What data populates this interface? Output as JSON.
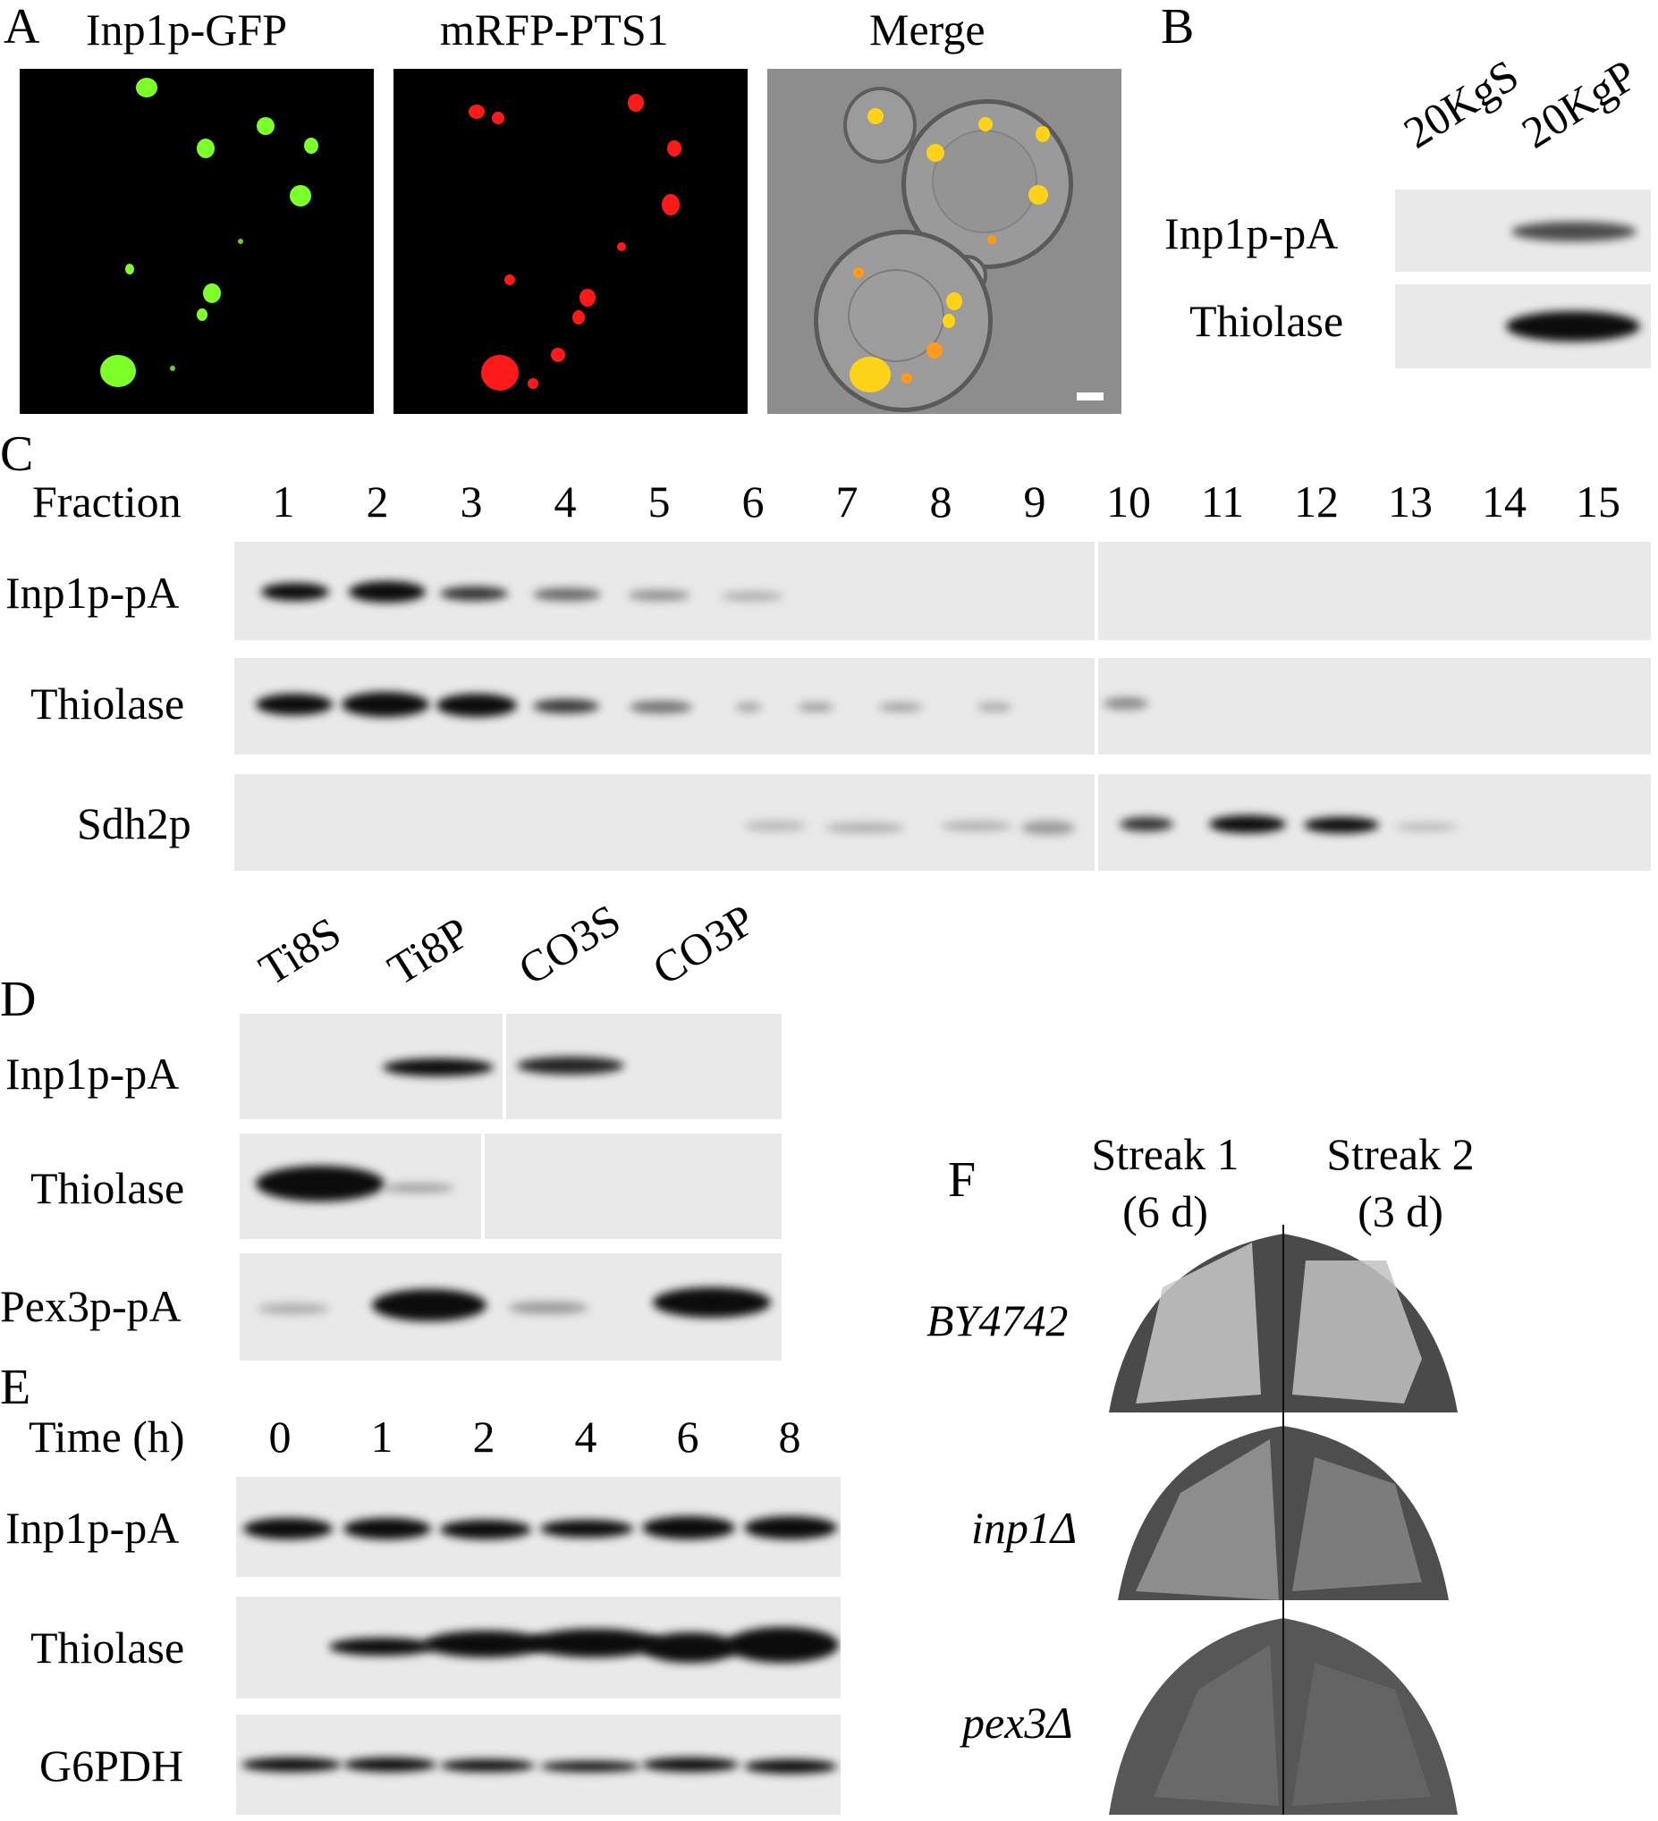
{
  "panels": {
    "A": {
      "letter": "A",
      "titles": [
        "Inp1p-GFP",
        "mRFP-PTS1",
        "Merge"
      ]
    },
    "B": {
      "letter": "B",
      "lanes": [
        "20KgS",
        "20KgP"
      ],
      "rows": [
        "Inp1p-pA",
        "Thiolase"
      ]
    },
    "C": {
      "letter": "C",
      "header": "Fraction",
      "fractions": [
        "1",
        "2",
        "3",
        "4",
        "5",
        "6",
        "7",
        "8",
        "9",
        "10",
        "11",
        "12",
        "13",
        "14",
        "15"
      ],
      "rows": [
        "Inp1p-pA",
        "Thiolase",
        "Sdh2p"
      ]
    },
    "D": {
      "letter": "D",
      "lanes": [
        "Ti8S",
        "Ti8P",
        "CO3S",
        "CO3P"
      ],
      "rows": [
        "Inp1p-pA",
        "Thiolase",
        "Pex3p-pA"
      ]
    },
    "E": {
      "letter": "E",
      "header": "Time (h)",
      "times": [
        "0",
        "1",
        "2",
        "4",
        "6",
        "8"
      ],
      "rows": [
        "Inp1p-pA",
        "Thiolase",
        "G6PDH"
      ]
    },
    "F": {
      "letter": "F",
      "streaks": [
        {
          "line1": "Streak 1",
          "line2": "(6 d)"
        },
        {
          "line1": "Streak 2",
          "line2": "(3 d)"
        }
      ],
      "strains": [
        "BY4742",
        "inp1Δ",
        "pex3Δ"
      ]
    }
  },
  "colors": {
    "gfp": "#7dff2a",
    "rfp": "#ff1a1a",
    "merge_spot": "#ffd21a",
    "blot_bg": "#e9e9e9",
    "band": "#0c0c0c"
  }
}
